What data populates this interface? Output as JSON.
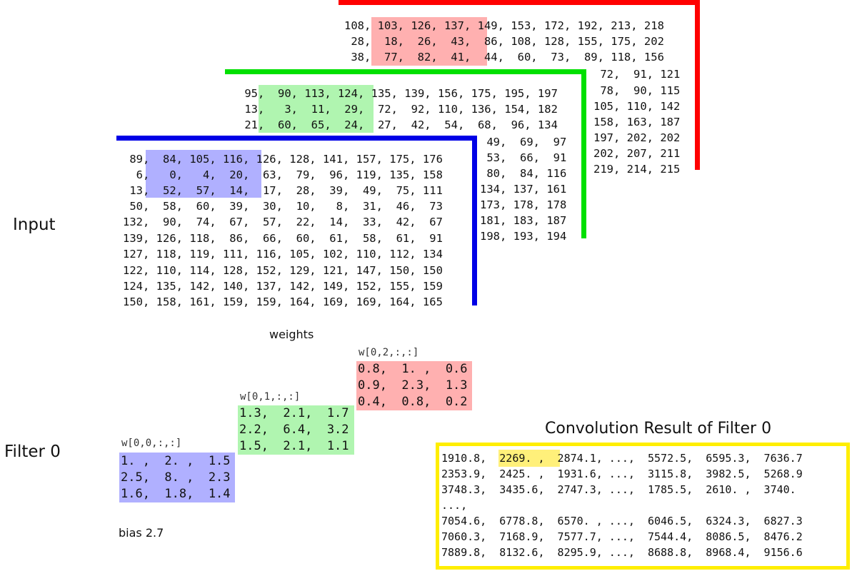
{
  "labels": {
    "input": "Input",
    "filter": "Filter 0",
    "weights": "weights",
    "bias": "bias 2.7",
    "result_title": "Convolution Result of Filter 0"
  },
  "colors": {
    "red_channel": "#ff0000",
    "green_channel": "#00e000",
    "blue_channel": "#0000e6",
    "red_highlight": "#ffb0b0",
    "green_highlight": "#b0f5b0",
    "blue_highlight": "#b0b0ff",
    "result_border": "#ffee00",
    "result_highlight": "#fff07a"
  },
  "input_channels": {
    "red": {
      "top_rows": [
        "108, 103, 126, 137, 149, 153, 172, 192, 213, 218",
        " 28,  18,  26,  43,  86, 108, 128, 155, 175, 202",
        " 38,  77,  82,  41,  44,  60,  73,  89, 118, 156"
      ],
      "side_rows": [
        " 72,  91, 121",
        " 78,  90, 115",
        "105, 110, 142",
        "158, 163, 187",
        "197, 202, 202",
        "202, 207, 211",
        "219, 214, 215"
      ]
    },
    "green": {
      "top_rows": [
        " 95,  90, 113, 124, 135, 139, 156, 175, 195, 197",
        " 13,   3,  11,  29,  72,  92, 110, 136, 154, 182",
        " 21,  60,  65,  24,  27,  42,  54,  68,  96, 134"
      ],
      "side_rows": [
        " 49,  69,  97",
        " 53,  66,  91",
        " 80,  84, 116",
        "134, 137, 161",
        "173, 178, 178",
        "181, 183, 187",
        "198, 193, 194"
      ]
    },
    "blue": {
      "rows": [
        " 89,  84, 105, 116, 126, 128, 141, 157, 175, 176",
        "  6,   0,   4,  20,  63,  79,  96, 119, 135, 158",
        " 13,  52,  57,  14,  17,  28,  39,  49,  75, 111",
        " 50,  58,  60,  39,  30,  10,   8,  31,  46,  73",
        "132,  90,  74,  67,  57,  22,  14,  33,  42,  67",
        "139, 126, 118,  86,  66,  60,  61,  58,  61,  91",
        "127, 118, 119, 111, 116, 105, 102, 110, 112, 134",
        "122, 110, 114, 128, 152, 129, 121, 147, 150, 150",
        "124, 135, 142, 140, 137, 142, 149, 152, 155, 159",
        "150, 158, 161, 159, 159, 164, 169, 169, 164, 165"
      ]
    }
  },
  "weights": {
    "w0": {
      "title": "w[0,0,:,:]",
      "rows": [
        "1. ,  2. ,  1.5",
        "2.5,  8. ,  2.3",
        "1.6,  1.8,  1.4"
      ]
    },
    "w1": {
      "title": "w[0,1,:,:]",
      "rows": [
        "1.3,  2.1,  1.7",
        "2.2,  6.4,  3.2",
        "1.5,  2.1,  1.1"
      ]
    },
    "w2": {
      "title": "w[0,2,:,:]",
      "rows": [
        "0.8,  1. ,  0.6",
        "0.9,  2.3,  1.3",
        "0.4,  0.8,  0.2"
      ]
    }
  },
  "result": {
    "rows": [
      "1910.8,  2269. ,  2874.1, ...,  5572.5,  6595.3,  7636.7",
      "2353.9,  2425. ,  1931.6, ...,  3115.8,  3982.5,  5268.9",
      "3748.3,  3435.6,  2747.3, ...,  1785.5,  2610. ,  3740.",
      "...,",
      "7054.6,  6778.8,  6570. , ...,  6046.5,  6324.3,  6827.3",
      "7060.3,  7168.9,  7577.7, ...,  7544.4,  8086.5,  8476.2",
      "7889.8,  8132.6,  8295.9, ...,  8688.8,  8968.4,  9156.6"
    ]
  }
}
